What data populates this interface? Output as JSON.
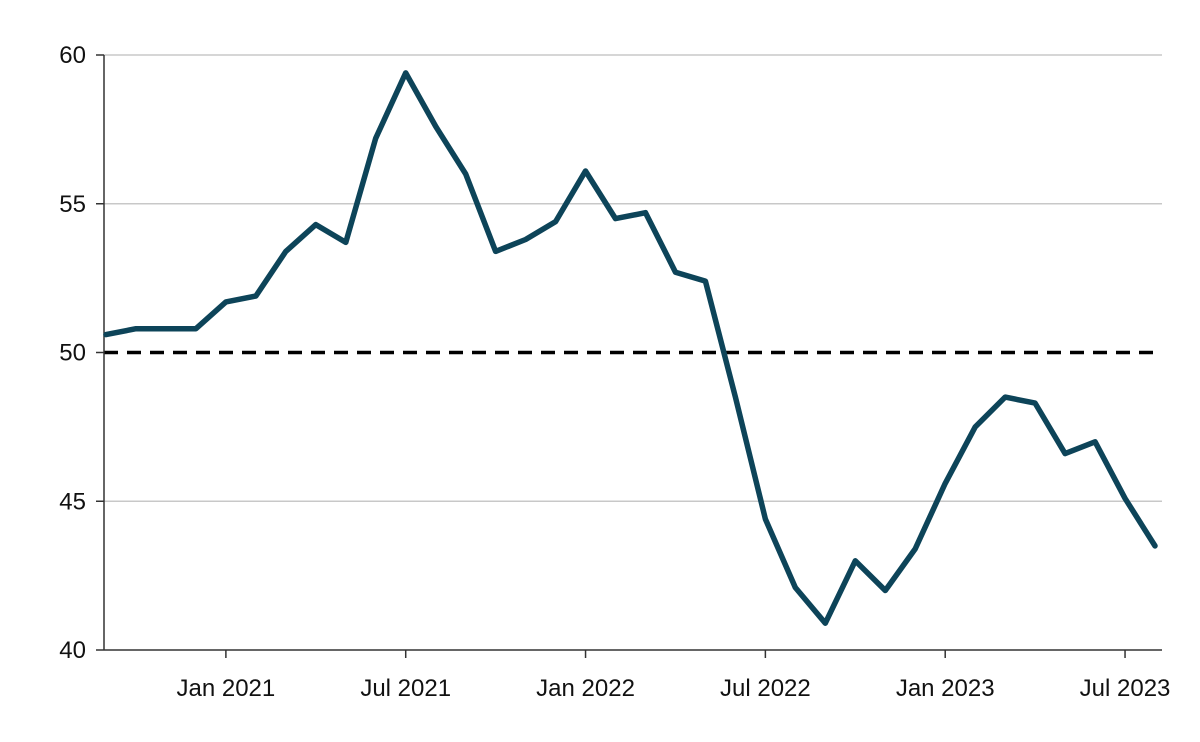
{
  "chart_data": {
    "type": "line",
    "title": "",
    "xlabel": "",
    "ylabel": "",
    "x": [
      "2020-09",
      "2020-10",
      "2020-11",
      "2020-12",
      "2021-01",
      "2021-02",
      "2021-03",
      "2021-04",
      "2021-05",
      "2021-06",
      "2021-07",
      "2021-08",
      "2021-09",
      "2021-10",
      "2021-11",
      "2021-12",
      "2022-01",
      "2022-02",
      "2022-03",
      "2022-04",
      "2022-05",
      "2022-06",
      "2022-07",
      "2022-08",
      "2022-09",
      "2022-10",
      "2022-11",
      "2022-12",
      "2023-01",
      "2023-02",
      "2023-03",
      "2023-04",
      "2023-05",
      "2023-06",
      "2023-07",
      "2023-08"
    ],
    "series": [
      {
        "color": "#0d4459",
        "values": [
          50.6,
          50.8,
          50.8,
          50.8,
          51.7,
          51.9,
          53.4,
          54.3,
          53.7,
          57.2,
          59.4,
          57.6,
          56.0,
          53.4,
          53.8,
          54.4,
          56.1,
          54.5,
          54.7,
          52.7,
          52.4,
          48.5,
          44.4,
          42.1,
          40.9,
          43.0,
          42.0,
          43.4,
          45.6,
          47.5,
          48.5,
          48.3,
          46.6,
          47.0,
          45.1,
          43.5
        ]
      }
    ],
    "reference_line": {
      "y": 50,
      "style": "dashed",
      "color": "#000000"
    },
    "ylim": [
      40,
      60
    ],
    "y_ticks": [
      40,
      45,
      50,
      55,
      60
    ],
    "x_ticks": [
      {
        "x": "2021-01",
        "label": "Jan 2021"
      },
      {
        "x": "2021-07",
        "label": "Jul 2021"
      },
      {
        "x": "2022-01",
        "label": "Jan 2022"
      },
      {
        "x": "2022-07",
        "label": "Jul 2022"
      },
      {
        "x": "2023-01",
        "label": "Jan 2023"
      },
      {
        "x": "2023-07",
        "label": "Jul 2023"
      }
    ],
    "grid": "horizontal",
    "legend": "none"
  }
}
